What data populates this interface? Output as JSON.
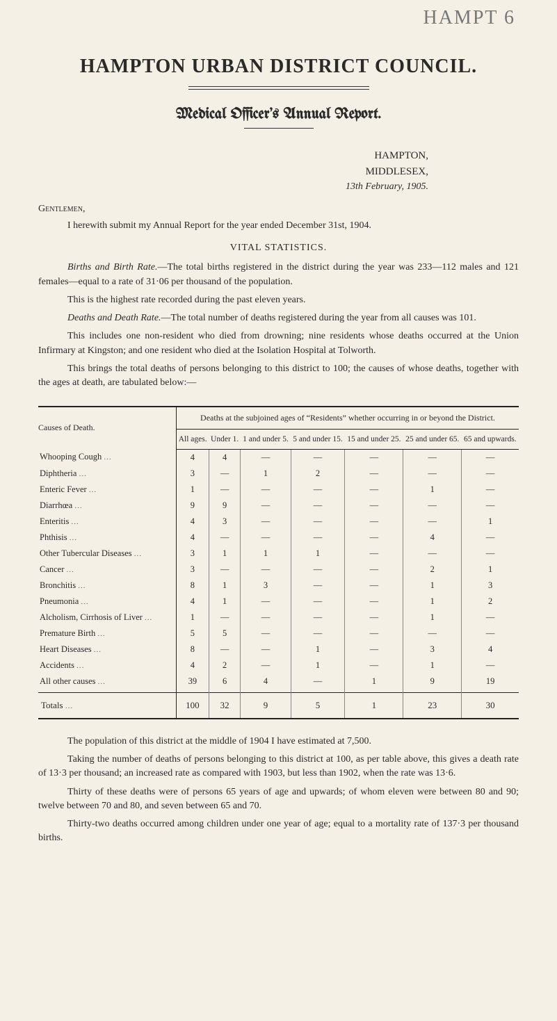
{
  "handwritten": "HAMPT 6",
  "title": "HAMPTON  URBAN  DISTRICT  COUNCIL.",
  "subtitle": "Medical Officer's Annual Report.",
  "address": {
    "city": "HAMPTON,",
    "county": "MIDDLESEX,",
    "date": "13th February, 1905."
  },
  "salutation": "Gentlemen,",
  "paragraphs": {
    "p1": "I herewith submit my Annual Report for the year ended December 31st, 1904.",
    "vital_head": "VITAL STATISTICS.",
    "p2a_lead": "Births and Birth Rate.",
    "p2a": "—The total births registered in the district during the year was 233—112 males and 121 females—equal to a rate of 31·06 per thousand of the population.",
    "p2b": "This is the highest rate recorded during the past eleven years.",
    "p3a_lead": "Deaths and Death Rate.",
    "p3a": "—The total number of deaths registered during the year from all causes was 101.",
    "p3b": "This includes one non-resident who died from drowning; nine residents whose deaths occurred at the Union Infirmary at Kingston; and one resident who died at the Isolation Hospital at Tolworth.",
    "p3c": "This brings the total deaths of persons belonging to this district to 100; the causes of whose deaths, together with the ages at death, are tabulated below:—"
  },
  "table": {
    "super_header": "Deaths at the subjoined ages of “Residents” whether occurring in or beyond the District.",
    "row_label_header": "Causes of Death.",
    "columns": [
      "All ages.",
      "Under 1.",
      "1 and under 5.",
      "5 and under 15.",
      "15 and under 25.",
      "25 and under 65.",
      "65 and upwards."
    ],
    "rows": [
      {
        "cause": "Whooping Cough",
        "v": [
          "4",
          "4",
          "—",
          "—",
          "—",
          "—",
          "—"
        ]
      },
      {
        "cause": "Diphtheria",
        "v": [
          "3",
          "—",
          "1",
          "2",
          "—",
          "—",
          "—"
        ]
      },
      {
        "cause": "Enteric Fever",
        "v": [
          "1",
          "—",
          "—",
          "—",
          "—",
          "1",
          "—"
        ]
      },
      {
        "cause": "Diarrhœa",
        "v": [
          "9",
          "9",
          "—",
          "—",
          "—",
          "—",
          "—"
        ]
      },
      {
        "cause": "Enteritis",
        "v": [
          "4",
          "3",
          "—",
          "—",
          "—",
          "—",
          "1"
        ]
      },
      {
        "cause": "Phthisis",
        "v": [
          "4",
          "—",
          "—",
          "—",
          "—",
          "4",
          "—"
        ]
      },
      {
        "cause": "Other Tubercular Diseases",
        "v": [
          "3",
          "1",
          "1",
          "1",
          "—",
          "—",
          "—"
        ]
      },
      {
        "cause": "Cancer",
        "v": [
          "3",
          "—",
          "—",
          "—",
          "—",
          "2",
          "1"
        ]
      },
      {
        "cause": "Bronchitis",
        "v": [
          "8",
          "1",
          "3",
          "—",
          "—",
          "1",
          "3"
        ]
      },
      {
        "cause": "Pneumonia",
        "v": [
          "4",
          "1",
          "—",
          "—",
          "—",
          "1",
          "2"
        ]
      },
      {
        "cause": "Alcholism, Cirrhosis of Liver",
        "v": [
          "1",
          "—",
          "—",
          "—",
          "—",
          "1",
          "—"
        ]
      },
      {
        "cause": "Premature Birth",
        "v": [
          "5",
          "5",
          "—",
          "—",
          "—",
          "—",
          "—"
        ]
      },
      {
        "cause": "Heart Diseases",
        "v": [
          "8",
          "—",
          "—",
          "1",
          "—",
          "3",
          "4"
        ]
      },
      {
        "cause": "Accidents",
        "v": [
          "4",
          "2",
          "—",
          "1",
          "—",
          "1",
          "—"
        ]
      },
      {
        "cause": "All other causes",
        "v": [
          "39",
          "6",
          "4",
          "—",
          "1",
          "9",
          "19"
        ]
      }
    ],
    "totals": {
      "label": "Totals",
      "v": [
        "100",
        "32",
        "9",
        "5",
        "1",
        "23",
        "30"
      ]
    }
  },
  "after": {
    "p1": "The population of this district at the middle of 1904 I have estimated at 7,500.",
    "p2": "Taking the number of deaths of persons belonging to this district at 100, as per table above, this gives a death rate of 13·3 per thousand; an increased rate as compared with 1903, but less than 1902, when the rate was 13·6.",
    "p3": "Thirty of these deaths were of persons 65 years of age and upwards; of whom eleven were between 80 and 90; twelve between 70 and 80, and seven between 65 and 70.",
    "p4": "Thirty-two deaths occurred among children under one year of age; equal to a mortality rate of 137·3 per thousand births."
  },
  "style": {
    "page_bg": "#f4f0e6",
    "text_color": "#2a2a2a",
    "rule_color": "#222222",
    "grid_color": "#888888"
  }
}
